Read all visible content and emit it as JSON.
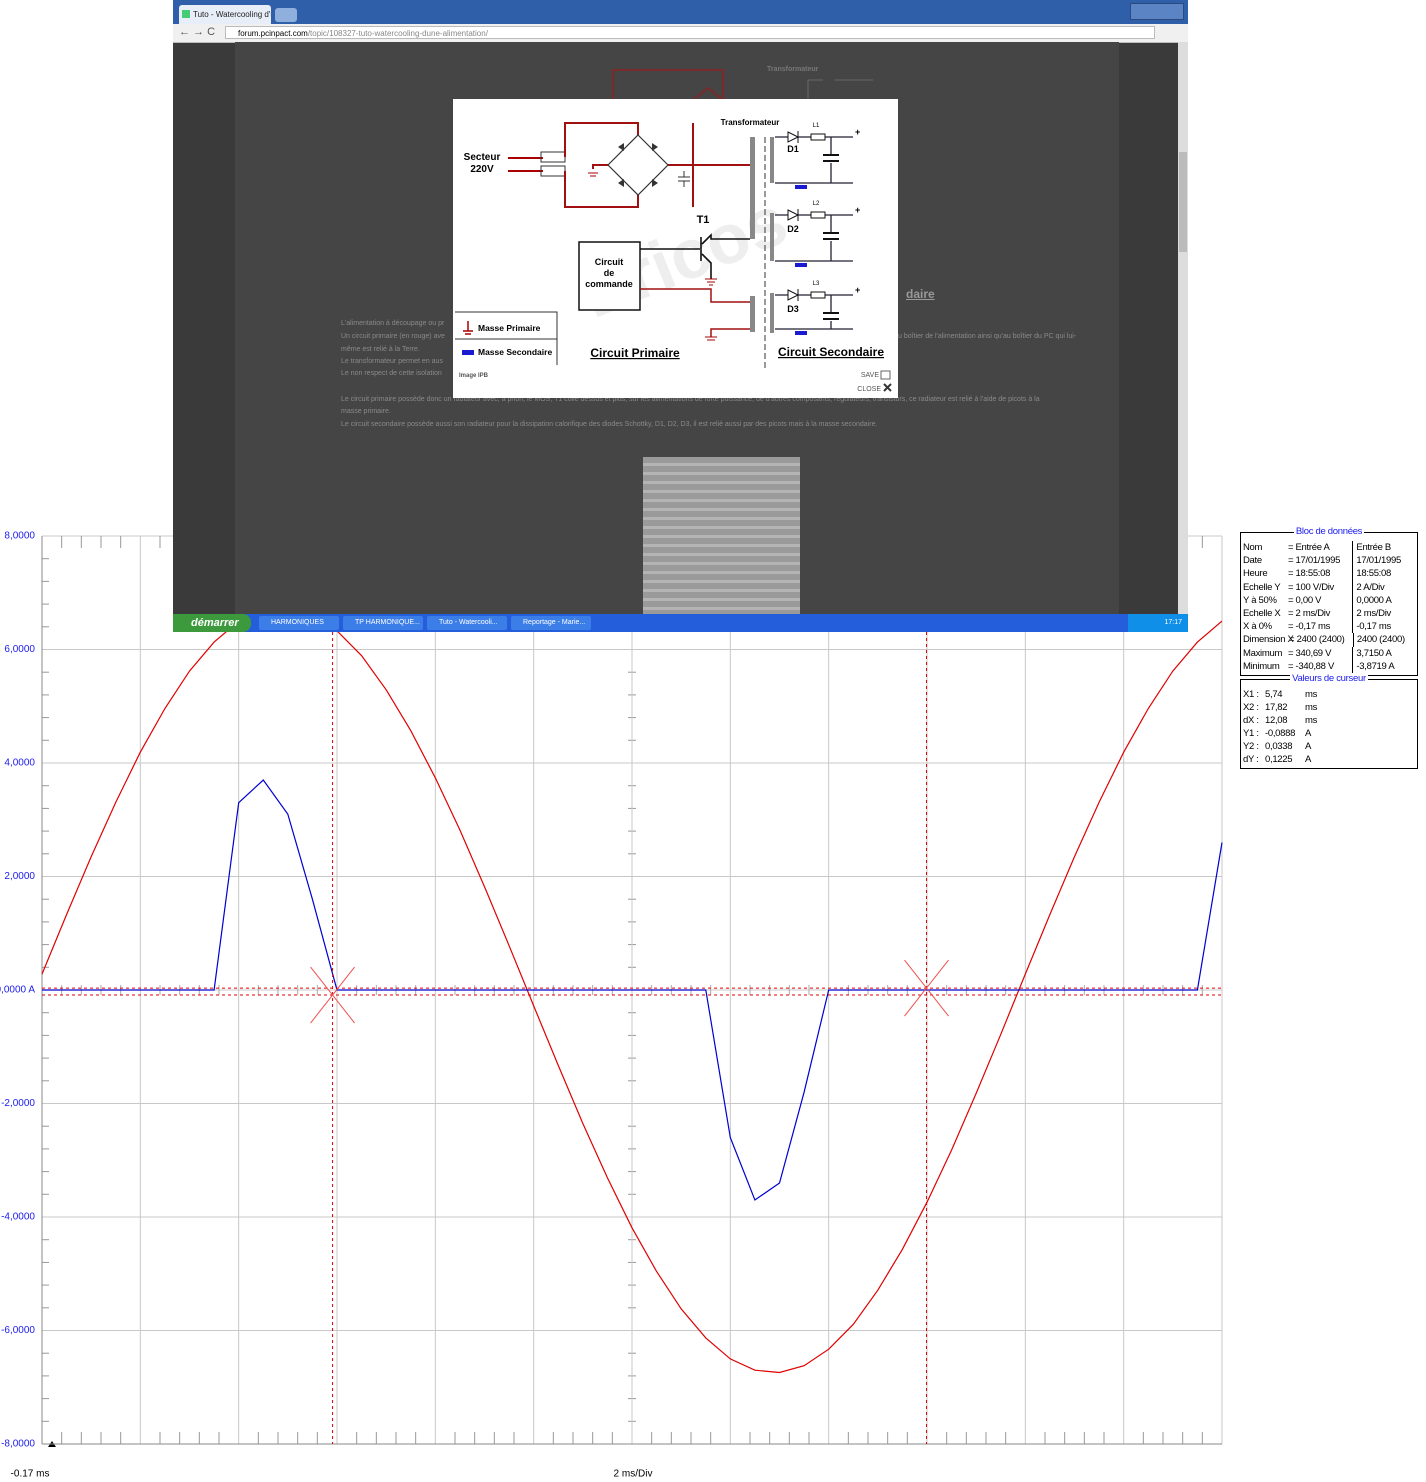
{
  "browser": {
    "tab_title": "Tuto - Watercooling d'une Al",
    "url_host": "forum.pcinpact.com",
    "url_path": "/topic/108327-tuto-watercooling-dune-alimentation/"
  },
  "page_bg": {
    "transformer_label": "Transformateur",
    "heading_fragment": "daire",
    "lines": [
      [
        "L'alimentation à découpage ou pr"
      ],
      [
        "Un circuit primaire (en rouge) ave",
        "u boîtier de l'alimentation ainsi qu'au boîtier du PC qui lui-"
      ],
      [
        "même est relié à la Terre."
      ],
      [
        "Le transformateur permet en aus"
      ],
      [
        "Le non respect de cette isolation"
      ],
      [
        "Le circuit primaire possède donc un radiateur avec, à priori, le MOS, T1 collé dessus et plus, sur les alimentations de forte puissance, de d'autres composants, régulateurs, transistors, ce radiateur est relié à l'aide de picots à la"
      ],
      [
        "masse primaire."
      ],
      [
        "Le circuit secondaire possède aussi son radiateur pour la dissipation calorifique des diodes Schottky, D1, D2, D3, il est relié aussi par des picots mais à la masse secondaire."
      ]
    ]
  },
  "lightbox": {
    "secteur": "Secteur",
    "voltage": "220V",
    "transformateur": "Transformateur",
    "diodes": [
      "D1",
      "D2",
      "D3"
    ],
    "inductors": [
      "L1",
      "L2",
      "L3"
    ],
    "transistor": "T1",
    "plus": "+",
    "commande": [
      "Circuit",
      "de",
      "commande"
    ],
    "masse_primaire": "Masse Primaire",
    "masse_secondaire": "Masse Secondaire",
    "circuit_primaire": "Circuit Primaire",
    "circuit_secondaire": "Circuit Secondaire",
    "credit": "Image IPB",
    "save": "SAVE",
    "close": "CLOSE",
    "watermark": "Ericos"
  },
  "taskbar": {
    "start": "démarrer",
    "items": [
      "HARMONIQUES",
      "TP HARMONIQUE...",
      "Tuto - Watercooli...",
      "Reportage - Marie..."
    ],
    "clock": "17:17"
  },
  "chart_data": {
    "type": "line",
    "x": [
      -0.17,
      0.33,
      0.83,
      1.33,
      1.83,
      2.33,
      2.83,
      3.33,
      3.83,
      4.33,
      4.83,
      5.33,
      5.83,
      6.33,
      6.83,
      7.33,
      7.83,
      8.33,
      8.83,
      9.33,
      9.83,
      10.33,
      10.83,
      11.33,
      11.83,
      12.33,
      12.83,
      13.33,
      13.83,
      14.33,
      14.83,
      15.33,
      15.83,
      16.33,
      16.83,
      17.33,
      17.83,
      18.33,
      18.83,
      19.33,
      19.83,
      20.33,
      20.83,
      21.33,
      21.83,
      22.33,
      22.83,
      23.33,
      23.83
    ],
    "series": [
      {
        "name": "Entrée A",
        "color": "#e00000",
        "values": [
          0.28,
          1.33,
          2.35,
          3.31,
          4.19,
          4.96,
          5.62,
          6.13,
          6.5,
          6.7,
          6.74,
          6.62,
          6.33,
          5.89,
          5.29,
          4.57,
          3.74,
          2.82,
          1.82,
          0.78,
          -0.28,
          -1.33,
          -2.35,
          -3.31,
          -4.19,
          -4.96,
          -5.62,
          -6.13,
          -6.5,
          -6.7,
          -6.74,
          -6.62,
          -6.33,
          -5.89,
          -5.29,
          -4.57,
          -3.74,
          -2.82,
          -1.82,
          -0.78,
          0.28,
          1.33,
          2.35,
          3.31,
          4.19,
          4.96,
          5.62,
          6.13,
          6.5
        ]
      },
      {
        "name": "Entrée B",
        "color": "#0000d0",
        "values": [
          0,
          0,
          0,
          0,
          0,
          0,
          0,
          0,
          3.3,
          3.7,
          3.1,
          1.6,
          0,
          0,
          0,
          0,
          0,
          0,
          0,
          0,
          0,
          0,
          0,
          0,
          0,
          0,
          0,
          0,
          -2.6,
          -3.7,
          -3.4,
          -1.8,
          0,
          0,
          0,
          0,
          0,
          0,
          0,
          0,
          0,
          0,
          0,
          0,
          0,
          0,
          0,
          0,
          2.6
        ]
      }
    ],
    "xlim": [
      -0.17,
      23.83
    ],
    "xticks": [
      -0.17,
      1.83,
      3.83,
      5.83,
      7.83,
      9.83,
      11.83,
      13.83,
      15.83,
      17.83,
      19.83,
      21.83,
      23.83
    ],
    "ylim": [
      -8,
      8
    ],
    "yticks": [
      {
        "value": 8,
        "label": "8,0000"
      },
      {
        "value": 6,
        "label": "6,0000"
      },
      {
        "value": 4,
        "label": "4,0000"
      },
      {
        "value": 2,
        "label": "2,0000"
      },
      {
        "value": 0,
        "label": "0,0000 A"
      },
      {
        "value": -2,
        "label": "-2,0000"
      },
      {
        "value": -4,
        "label": "-4,0000"
      },
      {
        "value": -6,
        "label": "-6,0000"
      },
      {
        "value": -8,
        "label": "-8,0000"
      }
    ],
    "grid": true,
    "x_origin_label": "-0.17 ms",
    "x_scale_label": "2 ms/Div",
    "cursors": {
      "x": [
        5.74,
        17.82
      ],
      "y": [
        -0.0888,
        0.0338
      ]
    }
  },
  "data_panel": {
    "title": "Bloc de données",
    "rows": [
      [
        "Nom",
        "= Entrée A",
        "Entrée B"
      ],
      [
        "Date",
        "= 17/01/1995",
        "17/01/1995"
      ],
      [
        "Heure",
        "= 18:55:08",
        "18:55:08"
      ],
      [
        "Echelle Y",
        "= 100 V/Div",
        "2 A/Div"
      ],
      [
        "Y à 50%",
        "= 0,00 V",
        "0,0000 A"
      ],
      [
        "Echelle X",
        "= 2 ms/Div",
        "2 ms/Div"
      ],
      [
        "X à 0%",
        "= -0,17 ms",
        "-0,17 ms"
      ],
      [
        "Dimension X",
        "= 2400 (2400)",
        "2400 (2400)"
      ],
      [
        "Maximum",
        "= 340,69 V",
        "3,7150 A"
      ],
      [
        "Minimum",
        "= -340,88 V",
        "-3,8719 A"
      ]
    ],
    "cursor_title": "Valeurs de curseur",
    "cursor_rows": [
      [
        "X1 :",
        "5,74",
        "ms"
      ],
      [
        "X2 :",
        "17,82",
        "ms"
      ],
      [
        "dX :",
        "12,08",
        "ms"
      ],
      [
        "Y1 :",
        "-0,0888",
        "A"
      ],
      [
        "Y2 :",
        "0,0338",
        "A"
      ],
      [
        "dY :",
        "0,1225",
        "A"
      ]
    ]
  }
}
